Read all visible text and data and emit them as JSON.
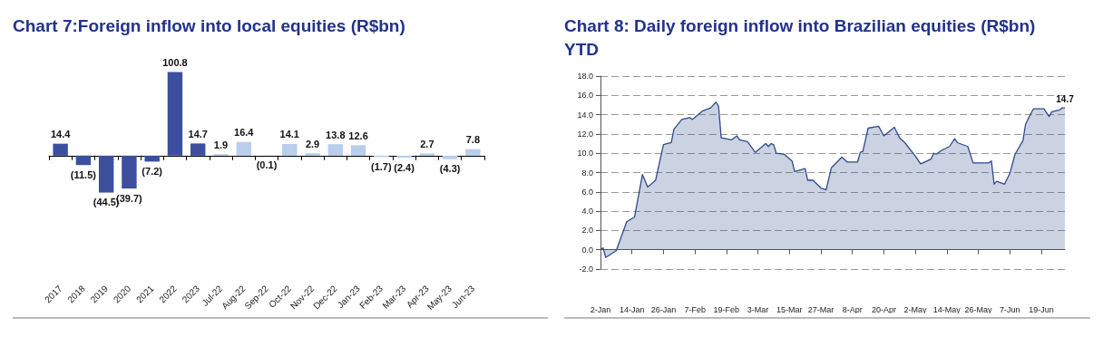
{
  "chart_data": [
    {
      "type": "bar",
      "title": "Chart 7:Foreign inflow into local equities (R$bn)",
      "categories": [
        "2017",
        "2018",
        "2019",
        "2020",
        "2021",
        "2022",
        "2023",
        "Jul-22",
        "Aug-22",
        "Sep-22",
        "Oct-22",
        "Nov-22",
        "Dec-22",
        "Jan-23",
        "Feb-23",
        "Mar-23",
        "Apr-23",
        "May-23",
        "Jun-23"
      ],
      "values": [
        14.4,
        -11.5,
        -44.5,
        -39.7,
        -7.2,
        100.8,
        14.7,
        1.9,
        16.4,
        -0.1,
        14.1,
        2.9,
        13.8,
        12.6,
        -1.7,
        -2.4,
        2.7,
        -4.3,
        7.8
      ],
      "value_labels": [
        "14.4",
        "(11.5)",
        "(44.5)",
        "(39.7)",
        "(7.2)",
        "100.8",
        "14.7",
        "1.9",
        "16.4",
        "(0.1)",
        "14.1",
        "2.9",
        "13.8",
        "12.6",
        "(1.7)",
        "(2.4)",
        "2.7",
        "(4.3)",
        "7.8"
      ],
      "colors": [
        "#3c4f9e",
        "#3c4f9e",
        "#3c4f9e",
        "#3c4f9e",
        "#3c4f9e",
        "#3c4f9e",
        "#3c4f9e",
        "#b9cdec",
        "#b9cdec",
        "#b9cdec",
        "#b9cdec",
        "#b9cdec",
        "#b9cdec",
        "#b9cdec",
        "#b9cdec",
        "#b9cdec",
        "#b9cdec",
        "#b9cdec",
        "#b9cdec"
      ]
    },
    {
      "type": "area",
      "title": "Chart 8: Daily foreign inflow into Brazilian equities (R$bn) YTD",
      "color": "#2e4a8c",
      "grid": "y",
      "xlim": [
        "2023-01-02",
        "2023-06-28"
      ],
      "xticks": [
        {
          "value": "2023-01-02",
          "label": "2-Jan"
        },
        {
          "value": "2023-01-14",
          "label": "14-Jan"
        },
        {
          "value": "2023-01-26",
          "label": "26-Jan"
        },
        {
          "value": "2023-02-07",
          "label": "7-Feb"
        },
        {
          "value": "2023-02-19",
          "label": "19-Feb"
        },
        {
          "value": "2023-03-03",
          "label": "3-Mar"
        },
        {
          "value": "2023-03-15",
          "label": "15-Mar"
        },
        {
          "value": "2023-03-27",
          "label": "27-Mar"
        },
        {
          "value": "2023-04-08",
          "label": "8-Apr"
        },
        {
          "value": "2023-04-20",
          "label": "20-Apr"
        },
        {
          "value": "2023-05-02",
          "label": "2-May"
        },
        {
          "value": "2023-05-14",
          "label": "14-May"
        },
        {
          "value": "2023-05-26",
          "label": "26-May"
        },
        {
          "value": "2023-06-07",
          "label": "7-Jun"
        },
        {
          "value": "2023-06-19",
          "label": "19-Jun"
        }
      ],
      "ylim": [
        -2,
        18
      ],
      "yticks": [
        {
          "value": -2,
          "label": "-2.0"
        },
        {
          "value": 0,
          "label": "0.0"
        },
        {
          "value": 2,
          "label": "2.0"
        },
        {
          "value": 4,
          "label": "4.0"
        },
        {
          "value": 6,
          "label": "6.0"
        },
        {
          "value": 8,
          "label": "8.0"
        },
        {
          "value": 10,
          "label": "10.0"
        },
        {
          "value": 12,
          "label": "12.0"
        },
        {
          "value": 14,
          "label": "14.0"
        },
        {
          "value": 16,
          "label": "16.0"
        },
        {
          "value": 18,
          "label": "18.0"
        }
      ],
      "x": [
        "2023-01-02",
        "2023-01-03",
        "2023-01-04",
        "2023-01-08",
        "2023-01-12",
        "2023-01-15",
        "2023-01-18",
        "2023-01-20",
        "2023-01-23",
        "2023-01-26",
        "2023-01-29",
        "2023-01-30",
        "2023-02-02",
        "2023-02-05",
        "2023-02-06",
        "2023-02-10",
        "2023-02-13",
        "2023-02-15",
        "2023-02-16",
        "2023-02-17",
        "2023-02-21",
        "2023-02-23",
        "2023-02-24",
        "2023-02-27",
        "2023-03-02",
        "2023-03-06",
        "2023-03-07",
        "2023-03-08",
        "2023-03-09",
        "2023-03-10",
        "2023-03-13",
        "2023-03-16",
        "2023-03-17",
        "2023-03-21",
        "2023-03-22",
        "2023-03-24",
        "2023-03-27",
        "2023-03-29",
        "2023-03-31",
        "2023-04-04",
        "2023-04-06",
        "2023-04-10",
        "2023-04-11",
        "2023-04-12",
        "2023-04-14",
        "2023-04-18",
        "2023-04-20",
        "2023-04-24",
        "2023-04-26",
        "2023-04-28",
        "2023-05-02",
        "2023-05-04",
        "2023-05-08",
        "2023-05-09",
        "2023-05-10",
        "2023-05-12",
        "2023-05-15",
        "2023-05-17",
        "2023-05-18",
        "2023-05-22",
        "2023-05-24",
        "2023-05-30",
        "2023-05-31",
        "2023-06-01",
        "2023-06-02",
        "2023-06-05",
        "2023-06-07",
        "2023-06-09",
        "2023-06-12",
        "2023-06-13",
        "2023-06-15",
        "2023-06-16",
        "2023-06-20",
        "2023-06-22",
        "2023-06-23",
        "2023-06-26",
        "2023-06-27",
        "2023-06-28"
      ],
      "values": [
        0.0,
        0.2,
        -0.8,
        -0.1,
        2.9,
        3.4,
        7.8,
        6.5,
        7.2,
        10.9,
        11.1,
        12.5,
        13.5,
        13.7,
        13.5,
        14.4,
        14.7,
        15.3,
        14.9,
        11.6,
        11.4,
        11.8,
        11.4,
        11.2,
        10.1,
        11.0,
        10.7,
        11.0,
        10.9,
        10.0,
        9.9,
        9.2,
        8.1,
        8.4,
        7.2,
        7.2,
        6.4,
        6.2,
        8.5,
        9.6,
        9.1,
        9.1,
        10.1,
        10.2,
        12.6,
        12.8,
        11.8,
        12.7,
        11.6,
        11.1,
        9.7,
        8.9,
        9.4,
        10.0,
        9.9,
        10.3,
        10.7,
        11.5,
        11.1,
        10.7,
        9.0,
        9.0,
        9.2,
        6.8,
        7.1,
        6.8,
        7.9,
        9.9,
        11.3,
        13.0,
        14.1,
        14.6,
        14.6,
        13.8,
        14.3,
        14.5,
        14.7,
        14.7
      ],
      "annotations": [
        {
          "text": "14.7",
          "x": "2023-06-28",
          "y": 14.7
        }
      ]
    }
  ]
}
